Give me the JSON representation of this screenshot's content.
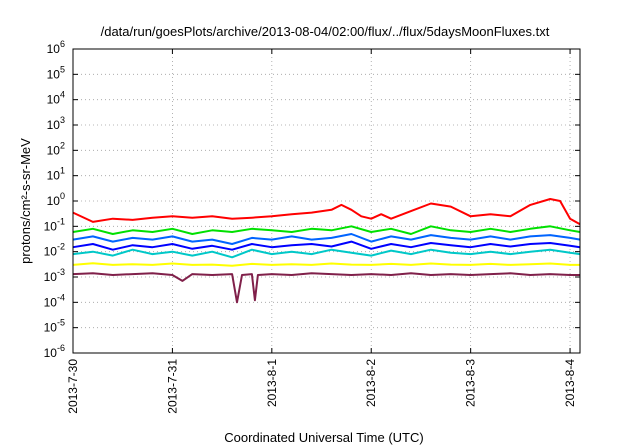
{
  "chart_data": {
    "type": "line",
    "title": "/data/run/goesPlots/archive/2013-08-04/02:00/flux/../flux/5daysMoonFluxes.txt",
    "xlabel": "Coordinated Universal Time (UTC)",
    "ylabel": "protons/cm²-s-sr-MeV",
    "yscale": "log",
    "ylim": [
      1e-06,
      1000000.0
    ],
    "xlim": [
      0,
      5.1
    ],
    "y_tick_exponents": [
      -6,
      -5,
      -4,
      -3,
      -2,
      -1,
      0,
      1,
      2,
      3,
      4,
      5,
      6
    ],
    "x_ticks": [
      {
        "x": 0,
        "label": "2013-7-30"
      },
      {
        "x": 1,
        "label": "2013-7-31"
      },
      {
        "x": 2,
        "label": "2013-8-1"
      },
      {
        "x": 3,
        "label": "2013-8-2"
      },
      {
        "x": 4,
        "label": "2013-8-3"
      },
      {
        "x": 5,
        "label": "2013-8-4"
      }
    ],
    "grid": true,
    "series": [
      {
        "color": "#ff0000",
        "x": [
          0,
          0.2,
          0.4,
          0.6,
          0.8,
          1.0,
          1.2,
          1.4,
          1.6,
          1.8,
          2.0,
          2.2,
          2.4,
          2.6,
          2.7,
          2.8,
          2.9,
          3.0,
          3.1,
          3.2,
          3.4,
          3.6,
          3.8,
          4.0,
          4.2,
          4.4,
          4.6,
          4.8,
          4.9,
          5.0,
          5.1
        ],
        "y": [
          0.35,
          0.15,
          0.2,
          0.18,
          0.22,
          0.25,
          0.22,
          0.25,
          0.2,
          0.22,
          0.25,
          0.3,
          0.35,
          0.45,
          0.7,
          0.45,
          0.25,
          0.2,
          0.3,
          0.2,
          0.4,
          0.8,
          0.6,
          0.25,
          0.3,
          0.25,
          0.7,
          1.2,
          1.0,
          0.2,
          0.12
        ]
      },
      {
        "color": "#00e000",
        "x": [
          0,
          0.2,
          0.4,
          0.6,
          0.8,
          1.0,
          1.2,
          1.4,
          1.6,
          1.8,
          2.0,
          2.2,
          2.4,
          2.6,
          2.8,
          3.0,
          3.2,
          3.4,
          3.6,
          3.8,
          4.0,
          4.2,
          4.4,
          4.6,
          4.8,
          5.0,
          5.1
        ],
        "y": [
          0.06,
          0.08,
          0.05,
          0.07,
          0.06,
          0.08,
          0.05,
          0.07,
          0.06,
          0.08,
          0.07,
          0.06,
          0.08,
          0.07,
          0.1,
          0.06,
          0.08,
          0.05,
          0.1,
          0.07,
          0.06,
          0.08,
          0.06,
          0.08,
          0.1,
          0.07,
          0.06
        ]
      },
      {
        "color": "#00c8c8",
        "x": [
          0,
          0.2,
          0.4,
          0.6,
          0.8,
          1.0,
          1.2,
          1.4,
          1.6,
          1.8,
          2.0,
          2.2,
          2.4,
          2.6,
          2.8,
          3.0,
          3.2,
          3.4,
          3.6,
          3.8,
          4.0,
          4.2,
          4.4,
          4.6,
          4.8,
          5.0,
          5.1
        ],
        "y": [
          0.008,
          0.01,
          0.007,
          0.012,
          0.008,
          0.01,
          0.007,
          0.01,
          0.006,
          0.012,
          0.008,
          0.01,
          0.008,
          0.012,
          0.009,
          0.007,
          0.011,
          0.008,
          0.012,
          0.009,
          0.008,
          0.01,
          0.008,
          0.01,
          0.012,
          0.009,
          0.008
        ]
      },
      {
        "color": "#0000ff",
        "x": [
          0,
          0.2,
          0.4,
          0.6,
          0.8,
          1.0,
          1.2,
          1.4,
          1.6,
          1.8,
          2.0,
          2.2,
          2.4,
          2.6,
          2.8,
          3.0,
          3.2,
          3.4,
          3.6,
          3.8,
          4.0,
          4.2,
          4.4,
          4.6,
          4.8,
          5.0,
          5.1
        ],
        "y": [
          0.015,
          0.02,
          0.012,
          0.018,
          0.015,
          0.02,
          0.013,
          0.017,
          0.012,
          0.02,
          0.015,
          0.018,
          0.02,
          0.016,
          0.025,
          0.013,
          0.02,
          0.015,
          0.022,
          0.018,
          0.015,
          0.02,
          0.016,
          0.02,
          0.022,
          0.017,
          0.015
        ]
      },
      {
        "color": "#0064ff",
        "x": [
          0,
          0.2,
          0.4,
          0.6,
          0.8,
          1.0,
          1.2,
          1.4,
          1.6,
          1.8,
          2.0,
          2.2,
          2.4,
          2.6,
          2.8,
          3.0,
          3.2,
          3.4,
          3.6,
          3.8,
          4.0,
          4.2,
          4.4,
          4.6,
          4.8,
          5.0,
          5.1
        ],
        "y": [
          0.03,
          0.04,
          0.025,
          0.035,
          0.03,
          0.04,
          0.025,
          0.03,
          0.02,
          0.035,
          0.03,
          0.04,
          0.03,
          0.035,
          0.05,
          0.025,
          0.04,
          0.03,
          0.045,
          0.035,
          0.03,
          0.04,
          0.03,
          0.04,
          0.045,
          0.035,
          0.03
        ]
      },
      {
        "color": "#ffff00",
        "x": [
          0,
          0.2,
          0.4,
          0.6,
          0.8,
          1.0,
          1.2,
          1.4,
          1.6,
          1.8,
          2.0,
          2.2,
          2.4,
          2.6,
          2.8,
          3.0,
          3.2,
          3.4,
          3.6,
          3.8,
          4.0,
          4.2,
          4.4,
          4.6,
          4.8,
          5.0,
          5.1
        ],
        "y": [
          0.003,
          0.0035,
          0.003,
          0.0032,
          0.003,
          0.0034,
          0.003,
          0.0031,
          0.0028,
          0.0033,
          0.003,
          0.0032,
          0.003,
          0.0034,
          0.0031,
          0.003,
          0.0033,
          0.003,
          0.0034,
          0.0031,
          0.003,
          0.0033,
          0.003,
          0.0032,
          0.0034,
          0.003,
          0.003
        ]
      },
      {
        "color": "#80204a",
        "x": [
          0,
          0.2,
          0.4,
          0.6,
          0.8,
          1.0,
          1.1,
          1.2,
          1.4,
          1.6,
          1.65,
          1.7,
          1.8,
          1.83,
          1.86,
          2.0,
          2.2,
          2.4,
          2.6,
          2.8,
          3.0,
          3.2,
          3.4,
          3.6,
          3.8,
          4.0,
          4.2,
          4.4,
          4.6,
          4.8,
          5.0,
          5.1
        ],
        "y": [
          0.0013,
          0.0014,
          0.0012,
          0.0013,
          0.0014,
          0.0012,
          0.0007,
          0.0013,
          0.0012,
          0.0013,
          0.0001,
          0.0012,
          0.0013,
          0.00012,
          0.0012,
          0.0013,
          0.0012,
          0.0014,
          0.0013,
          0.0012,
          0.0013,
          0.0012,
          0.0014,
          0.0012,
          0.0013,
          0.0012,
          0.0013,
          0.0014,
          0.0012,
          0.0013,
          0.0012,
          0.0012
        ]
      }
    ]
  }
}
